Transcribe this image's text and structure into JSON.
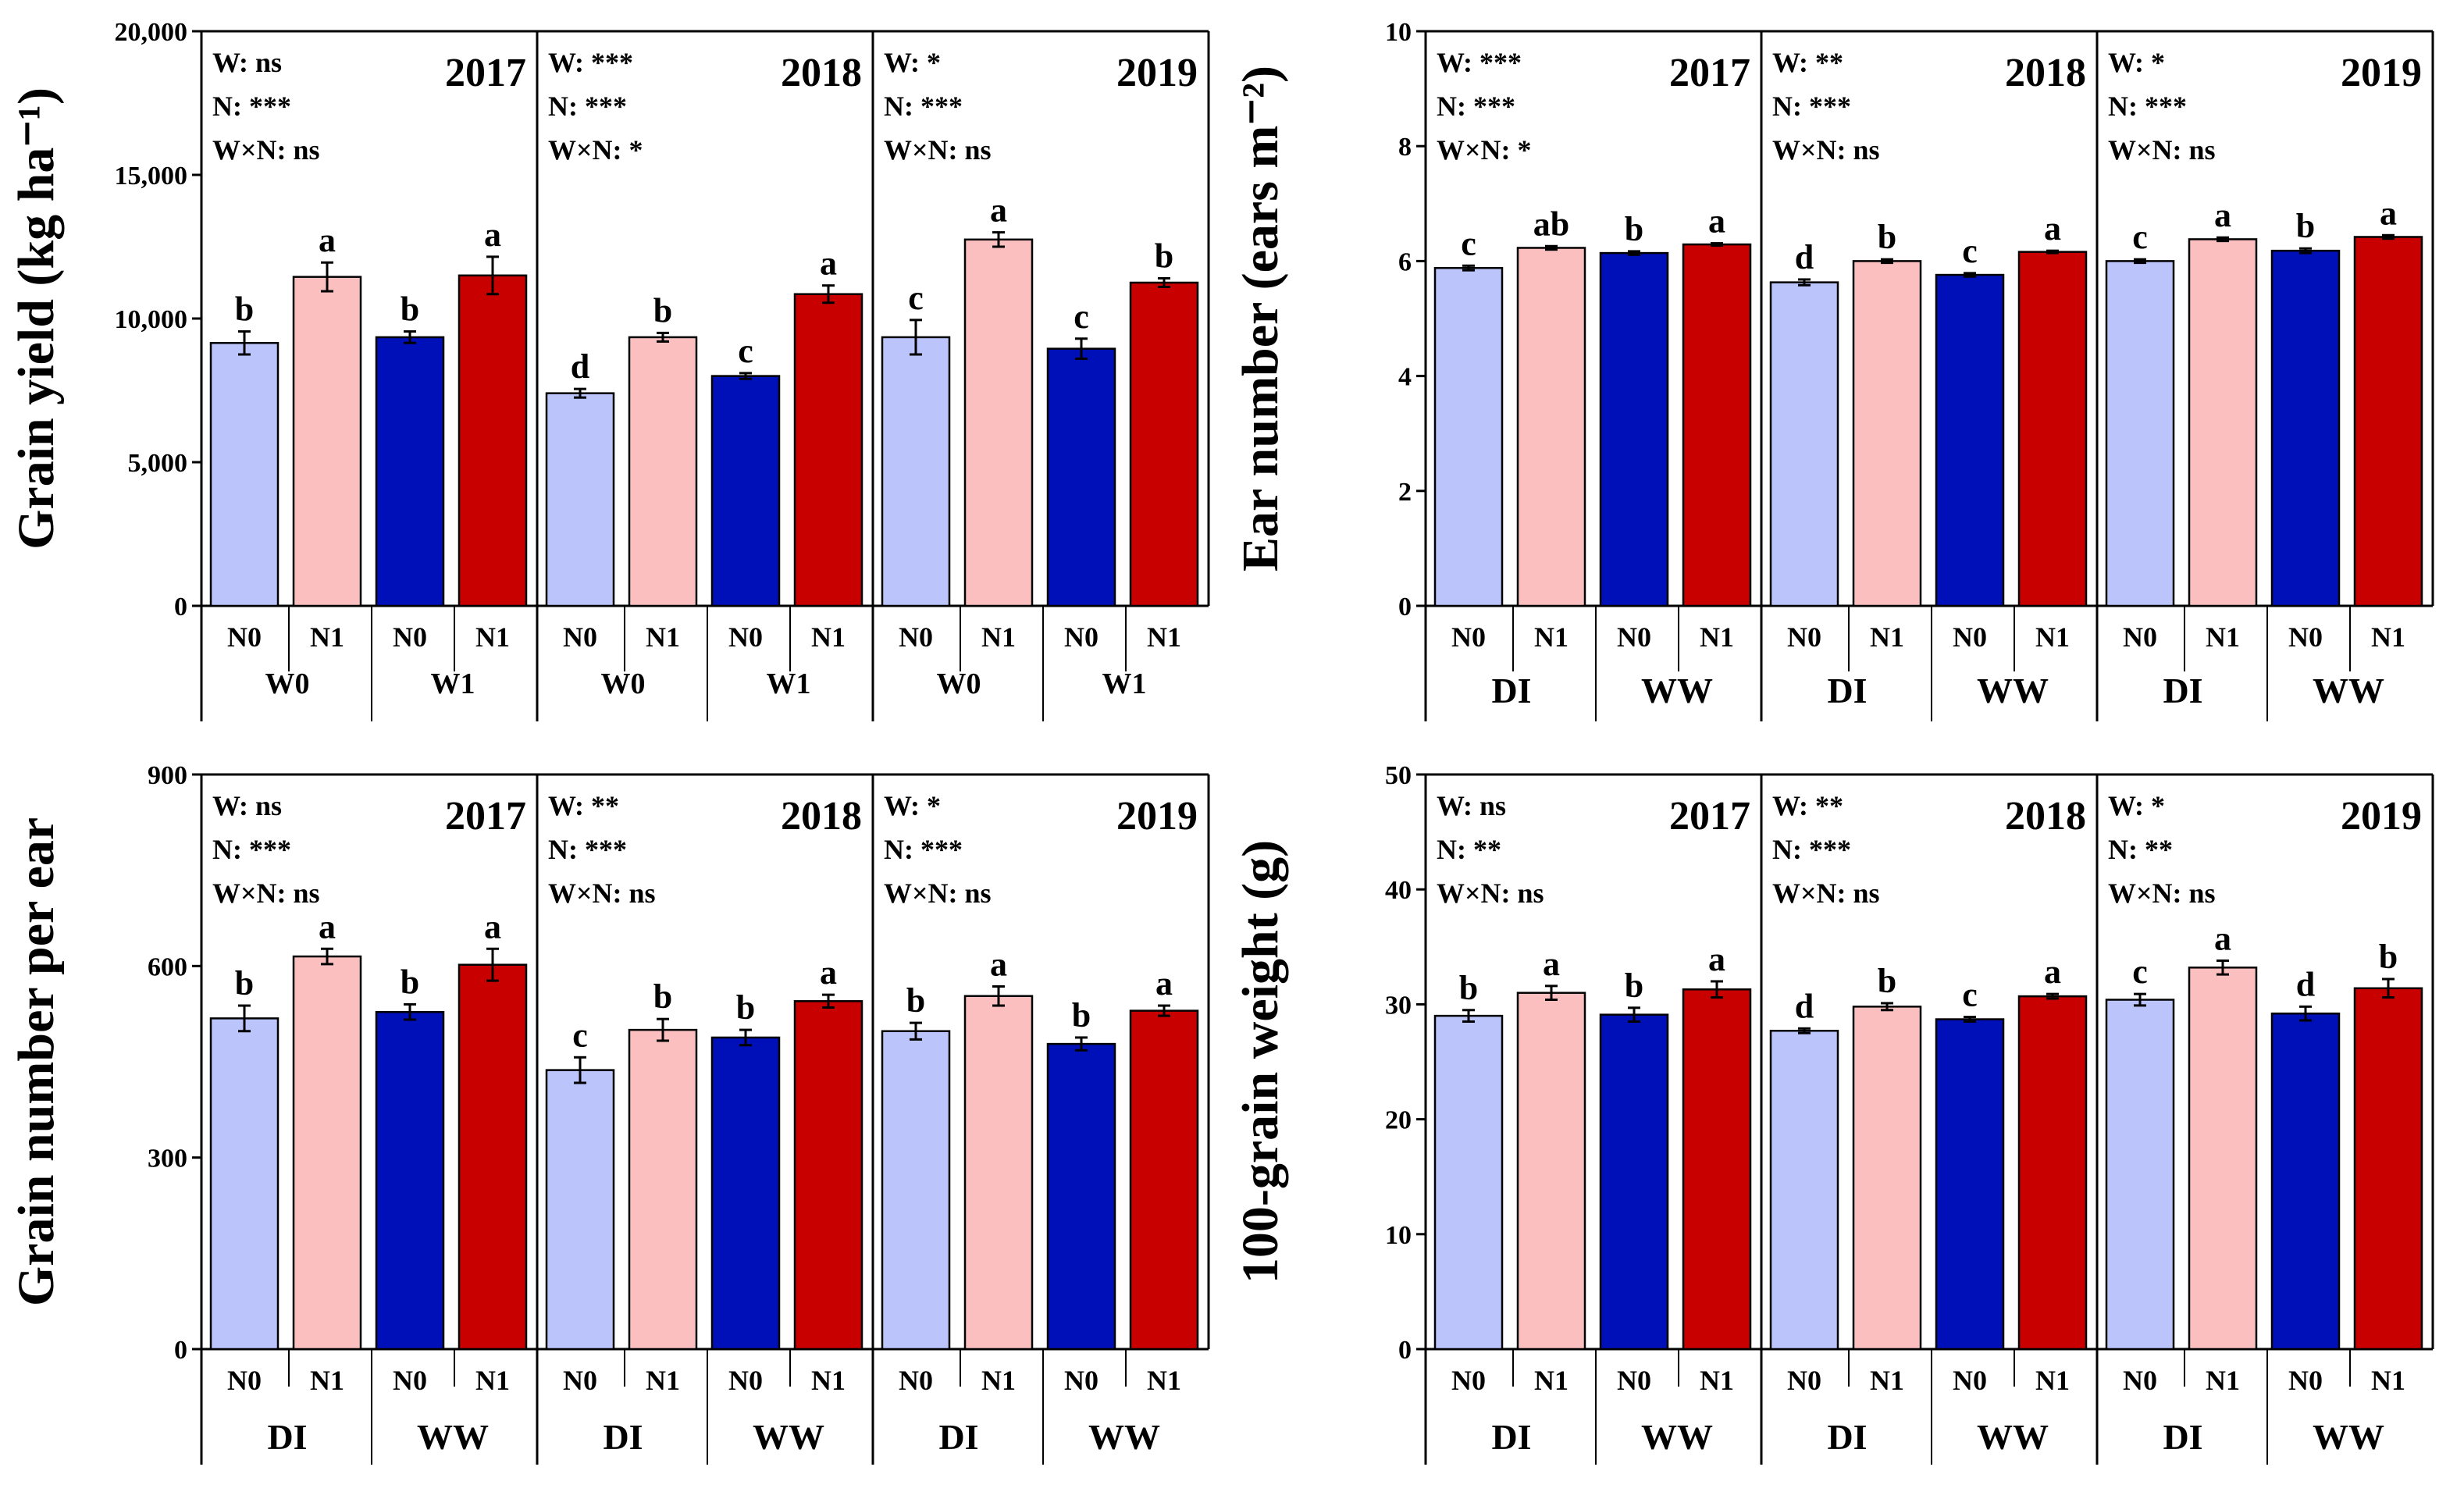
{
  "colors": {
    "N0_DI": "#bcc4fc",
    "N1_DI": "#fbbfc0",
    "N0_WW": "#0010b8",
    "N1_WW": "#c80000"
  },
  "chart_data": [
    {
      "type": "bar",
      "title": "",
      "ylabel": "Grain yield (kg ha⁻¹)",
      "ylim": [
        0,
        20000
      ],
      "yticks": [
        "0",
        "5,000",
        "10,000",
        "15,000",
        "20,000"
      ],
      "ytick_values": [
        0,
        5000,
        10000,
        15000,
        20000
      ],
      "years": [
        "2017",
        "2018",
        "2019"
      ],
      "categories": [
        "N0",
        "N1",
        "N0",
        "N1"
      ],
      "groups": [
        "W0",
        "W1"
      ],
      "stats": [
        [
          "W: ns",
          "N: ***",
          "W×N: ns"
        ],
        [
          "W: ***",
          "N: ***",
          "W×N: *"
        ],
        [
          "W: *",
          "N: ***",
          "W×N: ns"
        ]
      ],
      "values": [
        [
          9150,
          11450,
          9350,
          11500
        ],
        [
          7400,
          9350,
          8000,
          10850
        ],
        [
          9350,
          12750,
          8950,
          11250
        ]
      ],
      "errors": [
        [
          400,
          500,
          200,
          650
        ],
        [
          150,
          150,
          100,
          300
        ],
        [
          600,
          250,
          350,
          150
        ]
      ],
      "letters": [
        [
          "b",
          "a",
          "b",
          "a"
        ],
        [
          "d",
          "b",
          "c",
          "a"
        ],
        [
          "c",
          "a",
          "c",
          "b"
        ]
      ]
    },
    {
      "type": "bar",
      "title": "",
      "ylabel": "Ear number (ears m⁻²)",
      "ylim": [
        0,
        10
      ],
      "yticks": [
        "0",
        "2",
        "4",
        "6",
        "8",
        "10"
      ],
      "ytick_values": [
        0,
        2,
        4,
        6,
        8,
        10
      ],
      "years": [
        "2017",
        "2018",
        "2019"
      ],
      "categories": [
        "N0",
        "N1",
        "N0",
        "N1"
      ],
      "groups": [
        "DI",
        "WW"
      ],
      "stats": [
        [
          "W: ***",
          "N: ***",
          "W×N: *"
        ],
        [
          "W: **",
          "N: ***",
          "W×N: ns"
        ],
        [
          "W: *",
          "N: ***",
          "W×N: ns"
        ]
      ],
      "values": [
        [
          5.88,
          6.23,
          6.14,
          6.29
        ],
        [
          5.63,
          6.0,
          5.76,
          6.16
        ],
        [
          6.0,
          6.38,
          6.18,
          6.42
        ]
      ],
      "errors": [
        [
          0.04,
          0.03,
          0.03,
          0.02
        ],
        [
          0.05,
          0.03,
          0.03,
          0.02
        ],
        [
          0.03,
          0.03,
          0.04,
          0.03
        ]
      ],
      "letters": [
        [
          "c",
          "ab",
          "b",
          "a"
        ],
        [
          "d",
          "b",
          "c",
          "a"
        ],
        [
          "c",
          "a",
          "b",
          "a"
        ]
      ]
    },
    {
      "type": "bar",
      "title": "",
      "ylabel": "Grain number per ear",
      "ylim": [
        0,
        900
      ],
      "yticks": [
        "0",
        "300",
        "600",
        "900"
      ],
      "ytick_values": [
        0,
        300,
        600,
        900
      ],
      "years": [
        "2017",
        "2018",
        "2019"
      ],
      "categories": [
        "N0",
        "N1",
        "N0",
        "N1"
      ],
      "groups": [
        "DI",
        "WW"
      ],
      "stats": [
        [
          "W: ns",
          "N: ***",
          "W×N: ns"
        ],
        [
          "W: **",
          "N: ***",
          "W×N: ns"
        ],
        [
          "W: *",
          "N: ***",
          "W×N: ns"
        ]
      ],
      "values": [
        [
          518,
          615,
          528,
          602
        ],
        [
          437,
          500,
          488,
          545
        ],
        [
          498,
          553,
          478,
          530
        ]
      ],
      "errors": [
        [
          20,
          12,
          12,
          25
        ],
        [
          20,
          17,
          12,
          10
        ],
        [
          13,
          15,
          10,
          8
        ]
      ],
      "letters": [
        [
          "b",
          "a",
          "b",
          "a"
        ],
        [
          "c",
          "b",
          "b",
          "a"
        ],
        [
          "b",
          "a",
          "b",
          "a"
        ]
      ]
    },
    {
      "type": "bar",
      "title": "",
      "ylabel": "100-grain weight (g)",
      "ylim": [
        0,
        50
      ],
      "yticks": [
        "0",
        "10",
        "20",
        "30",
        "40",
        "50"
      ],
      "ytick_values": [
        0,
        10,
        20,
        30,
        40,
        50
      ],
      "years": [
        "2017",
        "2018",
        "2019"
      ],
      "categories": [
        "N0",
        "N1",
        "N0",
        "N1"
      ],
      "groups": [
        "DI",
        "WW"
      ],
      "stats": [
        [
          "W: ns",
          "N: **",
          "W×N: ns"
        ],
        [
          "W: **",
          "N: ***",
          "W×N: ns"
        ],
        [
          "W: *",
          "N: **",
          "W×N: ns"
        ]
      ],
      "values": [
        [
          29.0,
          31.0,
          29.1,
          31.3
        ],
        [
          27.7,
          29.8,
          28.7,
          30.7
        ],
        [
          30.4,
          33.2,
          29.2,
          31.4
        ]
      ],
      "errors": [
        [
          0.5,
          0.6,
          0.6,
          0.7
        ],
        [
          0.2,
          0.3,
          0.2,
          0.2
        ],
        [
          0.5,
          0.6,
          0.6,
          0.8
        ]
      ],
      "letters": [
        [
          "b",
          "a",
          "b",
          "a"
        ],
        [
          "d",
          "b",
          "c",
          "a"
        ],
        [
          "c",
          "a",
          "d",
          "b"
        ]
      ]
    }
  ]
}
